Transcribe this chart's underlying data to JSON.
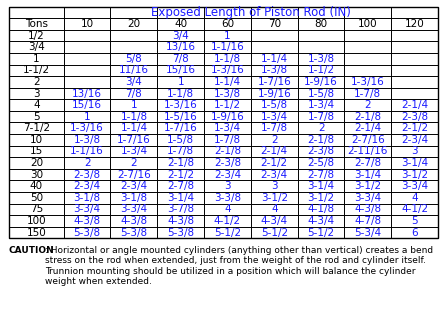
{
  "title": "Exposed Length of Piston Rod (IN)",
  "col_header": [
    "Tons",
    "10",
    "20",
    "40",
    "60",
    "70",
    "80",
    "100",
    "120"
  ],
  "rows": [
    [
      "1/2",
      "",
      "",
      "3/4",
      "1",
      "",
      "",
      "",
      ""
    ],
    [
      "3/4",
      "",
      "",
      "13/16",
      "1-1/16",
      "",
      "",
      "",
      ""
    ],
    [
      "1",
      "",
      "5/8",
      "7/8",
      "1-1/8",
      "1-1/4",
      "1-3/8",
      "",
      ""
    ],
    [
      "1-1/2",
      "",
      "11/16",
      "15/16",
      "1-3/16",
      "1-3/8",
      "1-1/2",
      "",
      ""
    ],
    [
      "2",
      "",
      "3/4",
      "1",
      "1-1/4",
      "1-7/16",
      "1-9/16",
      "1-3/16",
      ""
    ],
    [
      "3",
      "13/16",
      "7/8",
      "1-1/8",
      "1-3/8",
      "1-9/16",
      "1-5/8",
      "1-7/8",
      ""
    ],
    [
      "4",
      "15/16",
      "1",
      "1-3/16",
      "1-1/2",
      "1-5/8",
      "1-3/4",
      "2",
      "2-1/4"
    ],
    [
      "5",
      "1",
      "1-1/8",
      "1-5/16",
      "1-9/16",
      "1-3/4",
      "1-7/8",
      "2-1/8",
      "2-3/8"
    ],
    [
      "7-1/2",
      "1-3/16",
      "1-1/4",
      "1-7/16",
      "1-3/4",
      "1-7/8",
      "2",
      "2-1/4",
      "2-1/2"
    ],
    [
      "10",
      "1-3/8",
      "1-7/16",
      "1-5/8",
      "1-7/8",
      "2",
      "2-1/8",
      "2-7/16",
      "2-3/4"
    ],
    [
      "15",
      "1-1/16",
      "1-3/4",
      "1-7/8",
      "2-1/8",
      "2-1/4",
      "2-3/8",
      "2-11/16",
      "3"
    ],
    [
      "20",
      "2",
      "2",
      "2-1/8",
      "2-3/8",
      "2-1/2",
      "2-5/8",
      "2-7/8",
      "3-1/4"
    ],
    [
      "30",
      "2-3/8",
      "2-7/16",
      "2-1/2",
      "2-3/4",
      "2-3/4",
      "2-7/8",
      "3-1/4",
      "3-1/2"
    ],
    [
      "40",
      "2-3/4",
      "2-3/4",
      "2-7/8",
      "3",
      "3",
      "3-1/4",
      "3-1/2",
      "3-3/4"
    ],
    [
      "50",
      "3-1/8",
      "3-1/8",
      "3-1/4",
      "3-3/8",
      "3-1/2",
      "3-1/2",
      "3-3/4",
      "4"
    ],
    [
      "75",
      "3-3/4",
      "3-3/4",
      "3-7/8",
      "4",
      "4",
      "4-1/8",
      "4-3/8",
      "4-1/2"
    ],
    [
      "100",
      "4-3/8",
      "4-3/8",
      "4-3/8",
      "4-1/2",
      "4-3/4",
      "4-3/4",
      "4-7/8",
      "5"
    ],
    [
      "150",
      "5-3/8",
      "5-3/8",
      "5-3/8",
      "5-1/2",
      "5-1/2",
      "5-1/2",
      "5-3/4",
      "6"
    ]
  ],
  "caution_bold": "CAUTION",
  "caution_text": ": Horizontal or angle mounted cylinders (anything other than vertical) creates a bend stress on the rod when extended, just from the weight of the rod and cylinder itself. Trunnion mounting should be utilized in a position which will balance the cylinder weight when extended.",
  "text_color": "#1a1aff",
  "header_bg": "#ffffff",
  "border_color": "#000000",
  "font_size": 7.5,
  "header_font_size": 8.5
}
